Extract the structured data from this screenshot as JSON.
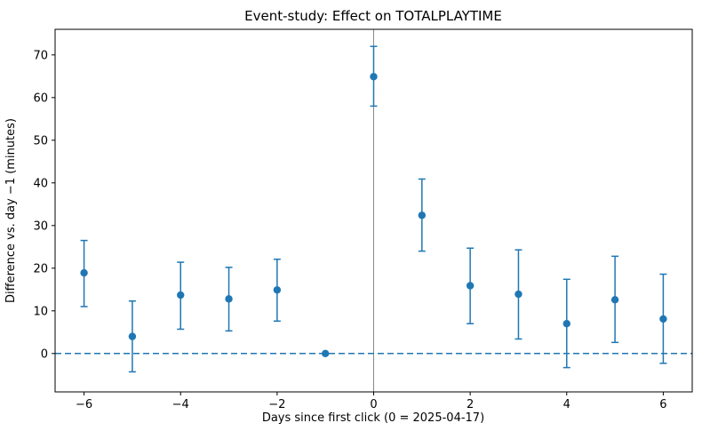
{
  "chart_data": {
    "type": "scatter",
    "title": "Event-study: Effect on TOTALPLAYTIME",
    "xlabel": "Days since first click (0 = 2025-04-17)",
    "ylabel": "Difference vs. day −1 (minutes)",
    "x": [
      -6,
      -5,
      -4,
      -3,
      -2,
      -1,
      0,
      1,
      2,
      3,
      4,
      5,
      6
    ],
    "y": [
      18.9,
      4.0,
      13.7,
      12.8,
      14.9,
      0,
      64.9,
      32.4,
      15.9,
      13.9,
      7.0,
      12.6,
      8.1
    ],
    "ci_low": [
      11.0,
      -4.3,
      5.7,
      5.3,
      7.6,
      0,
      58.0,
      24.0,
      7.0,
      3.4,
      -3.3,
      2.6,
      -2.3
    ],
    "ci_high": [
      26.5,
      12.3,
      21.4,
      20.2,
      22.1,
      0,
      72.0,
      40.9,
      24.7,
      24.3,
      17.4,
      22.8,
      18.6
    ],
    "reference_x": -1,
    "x_ticks": [
      -6,
      -4,
      -2,
      0,
      2,
      4,
      6
    ],
    "y_ticks": [
      0,
      10,
      20,
      30,
      40,
      50,
      60,
      70
    ],
    "xlim": [
      -6.6,
      6.6
    ],
    "ylim": [
      -9,
      76
    ],
    "grid": false,
    "legend": null,
    "marker_color": "#1f77b4",
    "errorbar_color": "#1f77b4",
    "zero_line_color": "#1f77b4",
    "event_line_color": "#888888",
    "axes_color": "#000000",
    "background_color": "#ffffff"
  }
}
